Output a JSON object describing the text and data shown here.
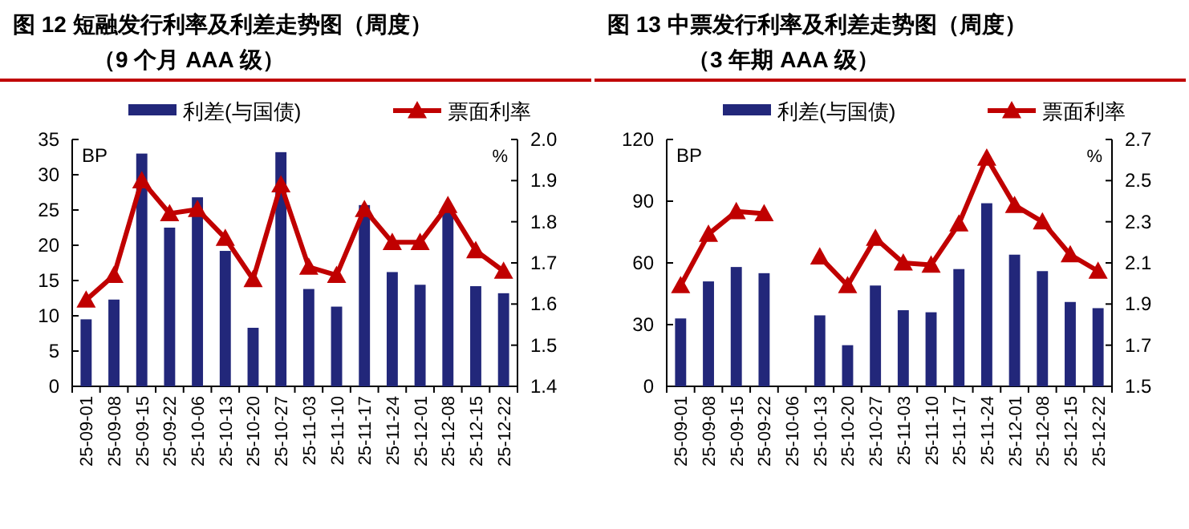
{
  "chart_data": [
    {
      "type": "bar",
      "title": "图 12  短融发行利率及利差走势图（周度）",
      "subtitle": "（9 个月 AAA 级）",
      "ylabel": "BP",
      "y2label": "%",
      "categories": [
        "25-09-01",
        "25-09-08",
        "25-09-15",
        "25-09-22",
        "25-10-06",
        "25-10-13",
        "25-10-20",
        "25-10-27",
        "25-11-03",
        "25-11-10",
        "25-11-17",
        "25-11-24",
        "25-12-01",
        "25-12-08",
        "25-12-15",
        "25-12-22"
      ],
      "series": [
        {
          "name": "利差(与国债)",
          "color": "#22277a",
          "values": [
            9.5,
            12.3,
            33,
            22.5,
            26.8,
            19.2,
            8.3,
            33.2,
            13.8,
            11.3,
            25.7,
            16.2,
            14.4,
            25,
            14.2,
            13.2
          ]
        },
        {
          "name": "票面利率",
          "type": "line",
          "axis": "y2",
          "color": "#c00000",
          "values": [
            1.61,
            1.67,
            1.9,
            1.82,
            1.83,
            1.76,
            1.66,
            1.89,
            1.69,
            1.67,
            1.83,
            1.75,
            1.75,
            1.84,
            1.73,
            1.68
          ]
        }
      ],
      "ylim": [
        0,
        35
      ],
      "yticks": [
        0,
        5,
        10,
        15,
        20,
        25,
        30,
        35
      ],
      "y2lim": [
        1.4,
        2.0
      ],
      "y2ticks": [
        {
          "value": 1.4,
          "label": "1.4"
        },
        {
          "value": 1.5,
          "label": "1.5"
        },
        {
          "value": 1.6,
          "label": "1.6"
        },
        {
          "value": 1.7,
          "label": "1.7"
        },
        {
          "value": 1.8,
          "label": "1.8"
        },
        {
          "value": 1.9,
          "label": "1.9"
        },
        {
          "value": 2.0,
          "label": "2.0"
        }
      ],
      "legend": "top",
      "marker": "triangle",
      "grid": false
    },
    {
      "type": "bar",
      "title": "图 13  中票发行利率及利差走势图（周度）",
      "subtitle": "（3 年期 AAA 级）",
      "ylabel": "BP",
      "y2label": "%",
      "categories": [
        "25-09-01",
        "25-09-08",
        "25-09-15",
        "25-09-22",
        "25-10-06",
        "25-10-13",
        "25-10-20",
        "25-10-27",
        "25-11-03",
        "25-11-10",
        "25-11-17",
        "25-11-24",
        "25-12-01",
        "25-12-08",
        "25-12-15",
        "25-12-22"
      ],
      "series": [
        {
          "name": "利差(与国债)",
          "color": "#22277a",
          "values": [
            33,
            51,
            58,
            55,
            null,
            34.5,
            20,
            49,
            37,
            36,
            57,
            89,
            64,
            56,
            41,
            38
          ]
        },
        {
          "name": "票面利率",
          "type": "line",
          "axis": "y2",
          "color": "#c00000",
          "values": [
            1.99,
            2.24,
            2.35,
            2.34,
            null,
            2.13,
            1.99,
            2.22,
            2.1,
            2.09,
            2.29,
            2.61,
            2.38,
            2.3,
            2.14,
            2.06
          ]
        }
      ],
      "ylim": [
        0,
        120
      ],
      "yticks": [
        0,
        30,
        60,
        90,
        120
      ],
      "y2lim": [
        1.5,
        2.7
      ],
      "y2ticks": [
        1.5,
        1.7,
        1.9,
        2.1,
        2.3,
        2.5,
        2.7
      ],
      "legend": "top",
      "marker": "triangle",
      "grid": false
    }
  ]
}
